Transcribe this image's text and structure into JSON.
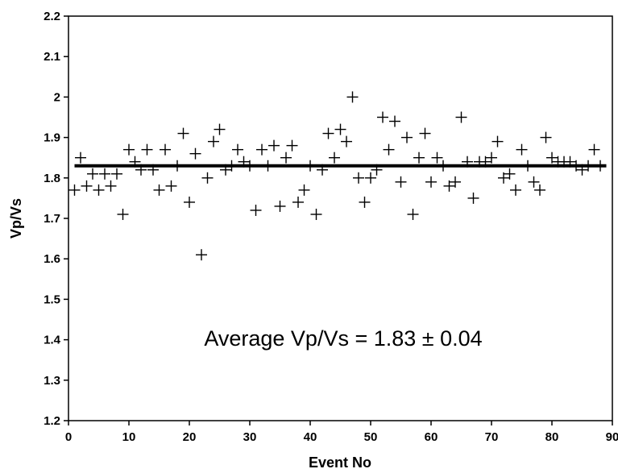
{
  "chart_data": {
    "type": "scatter",
    "title": "",
    "xlabel": "Event No",
    "ylabel": "Vp/Vs",
    "xlim": [
      0,
      90
    ],
    "ylim": [
      1.2,
      2.2
    ],
    "x_ticks": [
      "0",
      "10",
      "20",
      "30",
      "40",
      "50",
      "60",
      "70",
      "80",
      "90"
    ],
    "y_ticks": [
      "1.2",
      "1.3",
      "1.4",
      "1.5",
      "1.6",
      "1.7",
      "1.8",
      "1.9",
      "2",
      "2.1",
      "2.2"
    ],
    "grid": false,
    "legend": "none",
    "marker": "plus",
    "marker_color": "#000000",
    "average_line": {
      "y": 1.83,
      "x_range": [
        1,
        89
      ],
      "color": "#000000"
    },
    "annotation": "Average Vp/Vs = 1.83 ± 0.04",
    "points": [
      [
        1,
        1.77
      ],
      [
        2,
        1.85
      ],
      [
        3,
        1.78
      ],
      [
        4,
        1.81
      ],
      [
        5,
        1.77
      ],
      [
        6,
        1.81
      ],
      [
        7,
        1.78
      ],
      [
        8,
        1.81
      ],
      [
        9,
        1.71
      ],
      [
        10,
        1.87
      ],
      [
        11,
        1.84
      ],
      [
        12,
        1.82
      ],
      [
        13,
        1.87
      ],
      [
        14,
        1.82
      ],
      [
        15,
        1.77
      ],
      [
        16,
        1.87
      ],
      [
        17,
        1.78
      ],
      [
        18,
        1.83
      ],
      [
        19,
        1.91
      ],
      [
        20,
        1.74
      ],
      [
        21,
        1.86
      ],
      [
        22,
        1.61
      ],
      [
        23,
        1.8
      ],
      [
        24,
        1.89
      ],
      [
        25,
        1.92
      ],
      [
        26,
        1.82
      ],
      [
        27,
        1.83
      ],
      [
        28,
        1.87
      ],
      [
        29,
        1.84
      ],
      [
        30,
        1.83
      ],
      [
        31,
        1.72
      ],
      [
        32,
        1.87
      ],
      [
        33,
        1.83
      ],
      [
        34,
        1.88
      ],
      [
        35,
        1.73
      ],
      [
        36,
        1.85
      ],
      [
        37,
        1.88
      ],
      [
        38,
        1.74
      ],
      [
        39,
        1.77
      ],
      [
        40,
        1.83
      ],
      [
        41,
        1.71
      ],
      [
        42,
        1.82
      ],
      [
        43,
        1.91
      ],
      [
        44,
        1.85
      ],
      [
        45,
        1.92
      ],
      [
        46,
        1.89
      ],
      [
        47,
        2.0
      ],
      [
        48,
        1.8
      ],
      [
        49,
        1.74
      ],
      [
        50,
        1.8
      ],
      [
        51,
        1.82
      ],
      [
        52,
        1.95
      ],
      [
        53,
        1.87
      ],
      [
        54,
        1.94
      ],
      [
        55,
        1.79
      ],
      [
        56,
        1.9
      ],
      [
        57,
        1.71
      ],
      [
        58,
        1.85
      ],
      [
        59,
        1.91
      ],
      [
        60,
        1.79
      ],
      [
        61,
        1.85
      ],
      [
        62,
        1.83
      ],
      [
        63,
        1.78
      ],
      [
        64,
        1.79
      ],
      [
        65,
        1.95
      ],
      [
        66,
        1.84
      ],
      [
        67,
        1.75
      ],
      [
        68,
        1.84
      ],
      [
        69,
        1.84
      ],
      [
        70,
        1.85
      ],
      [
        71,
        1.89
      ],
      [
        72,
        1.8
      ],
      [
        73,
        1.81
      ],
      [
        74,
        1.77
      ],
      [
        75,
        1.87
      ],
      [
        76,
        1.83
      ],
      [
        77,
        1.79
      ],
      [
        78,
        1.77
      ],
      [
        79,
        1.9
      ],
      [
        80,
        1.85
      ],
      [
        81,
        1.84
      ],
      [
        82,
        1.84
      ],
      [
        83,
        1.84
      ],
      [
        84,
        1.83
      ],
      [
        85,
        1.82
      ],
      [
        86,
        1.83
      ],
      [
        87,
        1.87
      ],
      [
        88,
        1.83
      ]
    ]
  }
}
